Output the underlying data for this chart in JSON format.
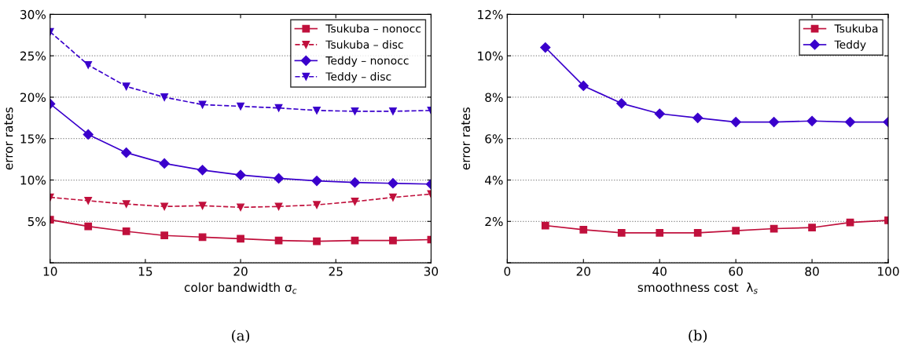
{
  "chart_data": [
    {
      "type": "line",
      "xlabel": "color bandwidth σ$_{c}$",
      "ylabel": "error rates",
      "annotations": [
        "(a)"
      ],
      "x": [
        10,
        12,
        14,
        16,
        18,
        20,
        22,
        24,
        26,
        28,
        30
      ],
      "xlim": [
        10,
        30
      ],
      "xticks": [
        10,
        15,
        20,
        25,
        30
      ],
      "ylim": [
        0,
        30
      ],
      "yticks": [
        {
          "value": 0,
          "label": null
        },
        {
          "value": 5,
          "label": "5%"
        },
        {
          "value": 10,
          "label": "10%"
        },
        {
          "value": 15,
          "label": "15%"
        },
        {
          "value": 20,
          "label": "20%"
        },
        {
          "value": 25,
          "label": "25%"
        },
        {
          "value": 30,
          "label": "30%"
        }
      ],
      "grid": "y",
      "legend": "top right",
      "series": [
        {
          "name": "Tsukuba – nonocc",
          "color": "#c0103c",
          "marker": "square",
          "line_style": "solid",
          "values": [
            5.2,
            4.4,
            3.8,
            3.3,
            3.1,
            2.9,
            2.7,
            2.6,
            2.7,
            2.7,
            2.8
          ]
        },
        {
          "name": "Tsukuba – disc",
          "color": "#c0103c",
          "marker": "triangle",
          "line_style": "dashed",
          "values": [
            7.9,
            7.5,
            7.1,
            6.8,
            6.9,
            6.7,
            6.8,
            7.0,
            7.4,
            7.9,
            8.3
          ]
        },
        {
          "name": "Teddy – nonocc",
          "color": "#3a00cc",
          "marker": "diamond",
          "line_style": "solid",
          "values": [
            19.2,
            15.5,
            13.3,
            12.0,
            11.2,
            10.6,
            10.2,
            9.9,
            9.7,
            9.6,
            9.5
          ]
        },
        {
          "name": "Teddy – disc",
          "color": "#3a00cc",
          "marker": "triangle",
          "line_style": "dashed",
          "values": [
            27.9,
            23.9,
            21.3,
            20.0,
            19.1,
            18.9,
            18.7,
            18.4,
            18.3,
            18.3,
            18.4
          ]
        }
      ]
    },
    {
      "type": "line",
      "xlabel": "smoothness cost  λ$_{s}$",
      "ylabel": "error rates",
      "annotations": [
        "(b)"
      ],
      "x": [
        10,
        20,
        30,
        40,
        50,
        60,
        70,
        80,
        90,
        100
      ],
      "xlim": [
        0,
        100
      ],
      "xticks": [
        0,
        20,
        40,
        60,
        80,
        100
      ],
      "ylim": [
        0,
        12
      ],
      "yticks": [
        {
          "value": 0,
          "label": null
        },
        {
          "value": 2,
          "label": "2%"
        },
        {
          "value": 4,
          "label": "4%"
        },
        {
          "value": 6,
          "label": "6%"
        },
        {
          "value": 8,
          "label": "8%"
        },
        {
          "value": 10,
          "label": "10%"
        },
        {
          "value": 12,
          "label": "12%"
        }
      ],
      "grid": "y",
      "legend": "top right",
      "series": [
        {
          "name": "Tsukuba",
          "color": "#c0103c",
          "marker": "square",
          "line_style": "solid",
          "values": [
            1.8,
            1.6,
            1.45,
            1.45,
            1.45,
            1.55,
            1.65,
            1.7,
            1.95,
            2.05
          ]
        },
        {
          "name": "Teddy",
          "color": "#3a00cc",
          "marker": "diamond",
          "line_style": "solid",
          "values": [
            10.4,
            8.55,
            7.7,
            7.2,
            7.0,
            6.8,
            6.8,
            6.85,
            6.8,
            6.8
          ]
        }
      ]
    }
  ]
}
